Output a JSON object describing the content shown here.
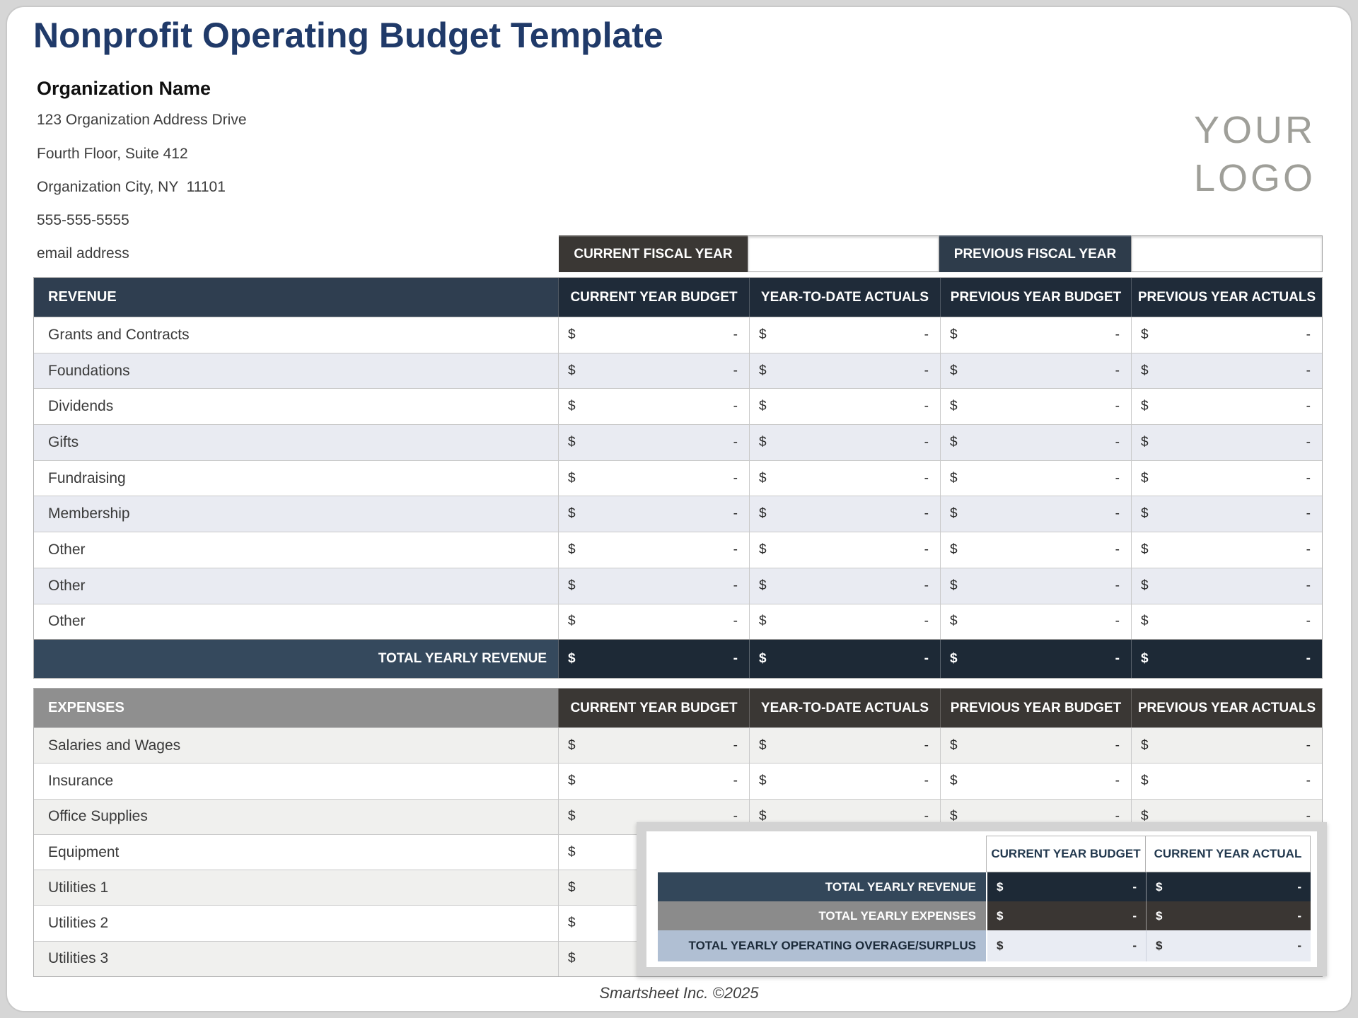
{
  "page": {
    "title": "Nonprofit Operating Budget Template",
    "footer": "Smartsheet Inc. ©2025"
  },
  "logo": {
    "line1": "YOUR",
    "line2": "LOGO"
  },
  "org": {
    "name": "Organization Name",
    "address1": "123 Organization Address Drive",
    "address2": "Fourth Floor, Suite 412",
    "address3": "Organization City, NY  11101",
    "phone": "555-555-5555",
    "email": "email address"
  },
  "symbols": {
    "dollar": "$",
    "dash": "-"
  },
  "fiscal": {
    "current_label": "CURRENT FISCAL YEAR",
    "current_value": "",
    "previous_label": "PREVIOUS FISCAL YEAR",
    "previous_value": ""
  },
  "columns": {
    "c1": "CURRENT YEAR BUDGET",
    "c2": "YEAR-TO-DATE ACTUALS",
    "c3": "PREVIOUS YEAR BUDGET",
    "c4": "PREVIOUS YEAR ACTUALS"
  },
  "revenue": {
    "section_label": "REVENUE",
    "rows": [
      {
        "label": "Grants and Contracts",
        "values": [
          "-",
          "-",
          "-",
          "-"
        ]
      },
      {
        "label": "Foundations",
        "values": [
          "-",
          "-",
          "-",
          "-"
        ]
      },
      {
        "label": "Dividends",
        "values": [
          "-",
          "-",
          "-",
          "-"
        ]
      },
      {
        "label": "Gifts",
        "values": [
          "-",
          "-",
          "-",
          "-"
        ]
      },
      {
        "label": "Fundraising",
        "values": [
          "-",
          "-",
          "-",
          "-"
        ]
      },
      {
        "label": "Membership",
        "values": [
          "-",
          "-",
          "-",
          "-"
        ]
      },
      {
        "label": "Other",
        "values": [
          "-",
          "-",
          "-",
          "-"
        ]
      },
      {
        "label": "Other",
        "values": [
          "-",
          "-",
          "-",
          "-"
        ]
      },
      {
        "label": "Other",
        "values": [
          "-",
          "-",
          "-",
          "-"
        ]
      }
    ],
    "total": {
      "label": "TOTAL YEARLY REVENUE",
      "values": [
        "-",
        "-",
        "-",
        "-"
      ]
    }
  },
  "expenses": {
    "section_label": "EXPENSES",
    "rows": [
      {
        "label": "Salaries and Wages",
        "values": [
          "-",
          "-",
          "-",
          "-"
        ]
      },
      {
        "label": "Insurance",
        "values": [
          "-",
          "-",
          "-",
          "-"
        ]
      },
      {
        "label": "Office Supplies",
        "values": [
          "-",
          "-",
          "-",
          "-"
        ]
      },
      {
        "label": "Equipment",
        "values": [
          "-",
          "-",
          "-",
          "-"
        ]
      },
      {
        "label": "Utilities 1",
        "values": [
          "-",
          "-",
          "-",
          "-"
        ]
      },
      {
        "label": "Utilities 2",
        "values": [
          "-",
          "-",
          "-",
          "-"
        ]
      },
      {
        "label": "Utilities 3",
        "values": [
          "-",
          "-",
          "-",
          "-"
        ]
      }
    ]
  },
  "summary": {
    "col1": "CURRENT YEAR BUDGET",
    "col2": "CURRENT YEAR ACTUAL",
    "rows": [
      {
        "label": "TOTAL YEARLY REVENUE",
        "values": [
          "-",
          "-"
        ]
      },
      {
        "label": "TOTAL YEARLY EXPENSES",
        "values": [
          "-",
          "-"
        ]
      },
      {
        "label": "TOTAL YEARLY OPERATING OVERAGE/SURPLUS",
        "values": [
          "-",
          "-"
        ]
      }
    ]
  }
}
